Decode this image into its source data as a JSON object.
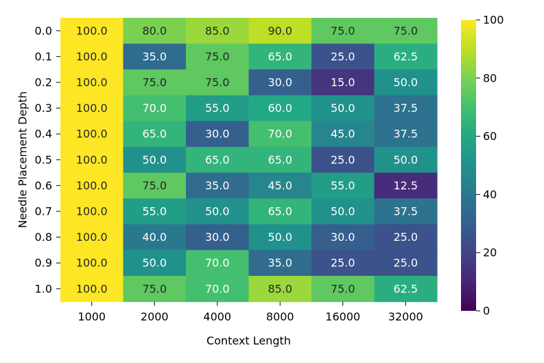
{
  "chart_data": {
    "type": "heatmap",
    "xlabel": "Context Length",
    "ylabel": "Needle Placement Depth",
    "x_categories": [
      "1000",
      "2000",
      "4000",
      "8000",
      "16000",
      "32000"
    ],
    "y_categories": [
      "0.0",
      "0.1",
      "0.2",
      "0.3",
      "0.4",
      "0.5",
      "0.6",
      "0.7",
      "0.8",
      "0.9",
      "1.0"
    ],
    "values": [
      [
        100.0,
        80.0,
        85.0,
        90.0,
        75.0,
        75.0
      ],
      [
        100.0,
        35.0,
        75.0,
        65.0,
        25.0,
        62.5
      ],
      [
        100.0,
        75.0,
        75.0,
        30.0,
        15.0,
        50.0
      ],
      [
        100.0,
        70.0,
        55.0,
        60.0,
        50.0,
        37.5
      ],
      [
        100.0,
        65.0,
        30.0,
        70.0,
        45.0,
        37.5
      ],
      [
        100.0,
        50.0,
        65.0,
        65.0,
        25.0,
        50.0
      ],
      [
        100.0,
        75.0,
        35.0,
        45.0,
        55.0,
        12.5
      ],
      [
        100.0,
        55.0,
        50.0,
        65.0,
        50.0,
        37.5
      ],
      [
        100.0,
        40.0,
        30.0,
        50.0,
        30.0,
        25.0
      ],
      [
        100.0,
        50.0,
        70.0,
        35.0,
        25.0,
        25.0
      ],
      [
        100.0,
        75.0,
        70.0,
        85.0,
        75.0,
        62.5
      ]
    ],
    "colormap": "viridis",
    "vmin": 0,
    "vmax": 100,
    "colorbar_ticks": [
      "0",
      "20",
      "40",
      "60",
      "80",
      "100"
    ],
    "annotation_format": "one-decimal"
  }
}
